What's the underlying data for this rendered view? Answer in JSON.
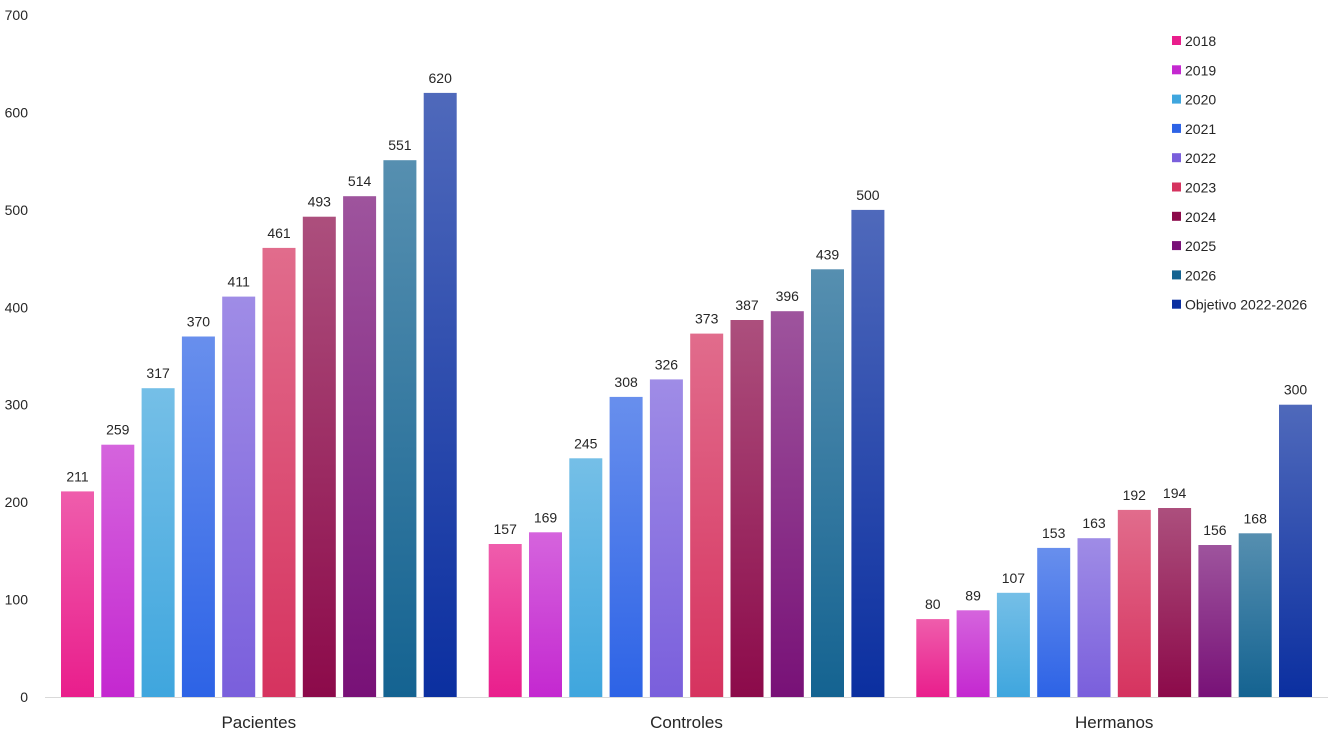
{
  "chart_data": {
    "type": "bar",
    "title": "",
    "xlabel": "",
    "ylabel": "",
    "ylim": [
      0,
      700
    ],
    "yticks": [
      0,
      100,
      200,
      300,
      400,
      500,
      600,
      700
    ],
    "grid": false,
    "legend_position": "top-right",
    "categories": [
      "Pacientes",
      "Controles",
      "Hermanos"
    ],
    "series": [
      {
        "name": "2018",
        "color": "#e91e8c",
        "values": [
          211,
          157,
          80
        ]
      },
      {
        "name": "2019",
        "color": "#c428d0",
        "values": [
          259,
          169,
          89
        ]
      },
      {
        "name": "2020",
        "color": "#3fa6de",
        "values": [
          317,
          245,
          107
        ]
      },
      {
        "name": "2021",
        "color": "#2d63e6",
        "values": [
          370,
          308,
          153
        ]
      },
      {
        "name": "2022",
        "color": "#7a5fdc",
        "values": [
          411,
          326,
          163
        ]
      },
      {
        "name": "2023",
        "color": "#d6335f",
        "values": [
          461,
          373,
          192
        ]
      },
      {
        "name": "2024",
        "color": "#8c0a4a",
        "values": [
          493,
          387,
          194
        ]
      },
      {
        "name": "2025",
        "color": "#781177",
        "values": [
          514,
          396,
          156
        ]
      },
      {
        "name": "2026",
        "color": "#146391",
        "values": [
          551,
          439,
          168
        ]
      },
      {
        "name": "Objetivo 2022-2026",
        "color": "#0b2fa0",
        "values": [
          620,
          500,
          300
        ]
      }
    ]
  }
}
